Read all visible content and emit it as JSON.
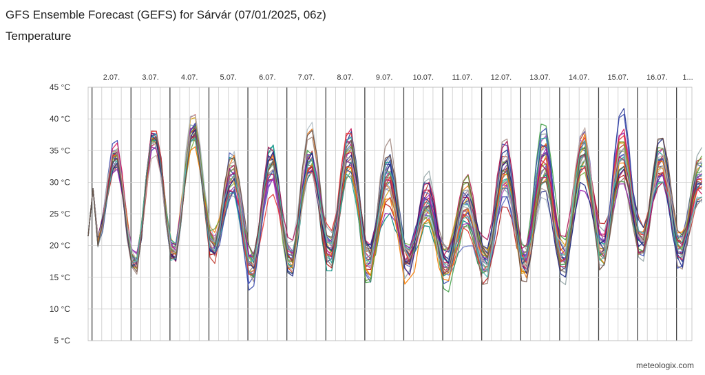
{
  "header": {
    "title": "GFS Ensemble Forecast (GEFS) for Sárvár (07/01/2025, 06z)",
    "subtitle": "Temperature"
  },
  "footer": {
    "credit": "meteologix.com"
  },
  "chart_data": {
    "type": "line",
    "title": "GFS Ensemble Forecast (GEFS) for Sárvár (07/01/2025, 06z)",
    "subtitle": "Temperature",
    "unit": "°C",
    "ylim": [
      5,
      45
    ],
    "y_ticks": [
      5,
      10,
      15,
      20,
      25,
      30,
      35,
      40,
      45
    ],
    "y_tick_labels": [
      "5 °C",
      "10 °C",
      "15 °C",
      "20 °C",
      "25 °C",
      "30 °C",
      "35 °C",
      "40 °C",
      "45 °C"
    ],
    "x_day_labels": [
      "2.07.",
      "3.07.",
      "4.07.",
      "5.07.",
      "6.07.",
      "7.07.",
      "8.07.",
      "9.07.",
      "10.07.",
      "11.07.",
      "12.07.",
      "13.07.",
      "14.07.",
      "15.07.",
      "16.07.",
      "1..."
    ],
    "x_start_day_offset": -0.1,
    "x_end_day_offset": 15.7,
    "grid": true,
    "series_count": 31,
    "day_mean": {
      "max": [
        34.5,
        38,
        38.5,
        31,
        33,
        34,
        35,
        31,
        27,
        26,
        32,
        33,
        35,
        35,
        33,
        31
      ],
      "min": [
        21,
        16.5,
        18,
        20,
        16,
        17,
        19,
        17,
        18,
        17,
        17,
        17,
        17,
        19,
        20,
        19
      ]
    },
    "day_spread": {
      "max": [
        2,
        2,
        2.5,
        5,
        4,
        4,
        4,
        5,
        5,
        5,
        5,
        5,
        5,
        5,
        5,
        5
      ],
      "min": [
        1,
        1.5,
        1.5,
        3,
        3,
        3,
        3.5,
        3.5,
        3.5,
        3.5,
        3.5,
        3.5,
        3.5,
        3.5,
        3.5,
        3.5
      ]
    },
    "series_colors": [
      "#c0392b",
      "#3b4bb8",
      "#8e44ad",
      "#e67e22",
      "#7cb342",
      "#95a5a6",
      "#c2185b",
      "#1e3a8a",
      "#a1887f",
      "#00897b",
      "#b71c1c",
      "#5c6bc0",
      "#ab47bc",
      "#d4a017",
      "#43a047",
      "#90a4ae",
      "#d81b60",
      "#283593",
      "#8d6e63",
      "#26a69a",
      "#e53935",
      "#3949ab",
      "#9c27b0",
      "#f57c00",
      "#689f38",
      "#b0bec5",
      "#ad1457",
      "#1a237e",
      "#bcaaa4",
      "#4db6ac",
      "#6d4c41"
    ]
  }
}
